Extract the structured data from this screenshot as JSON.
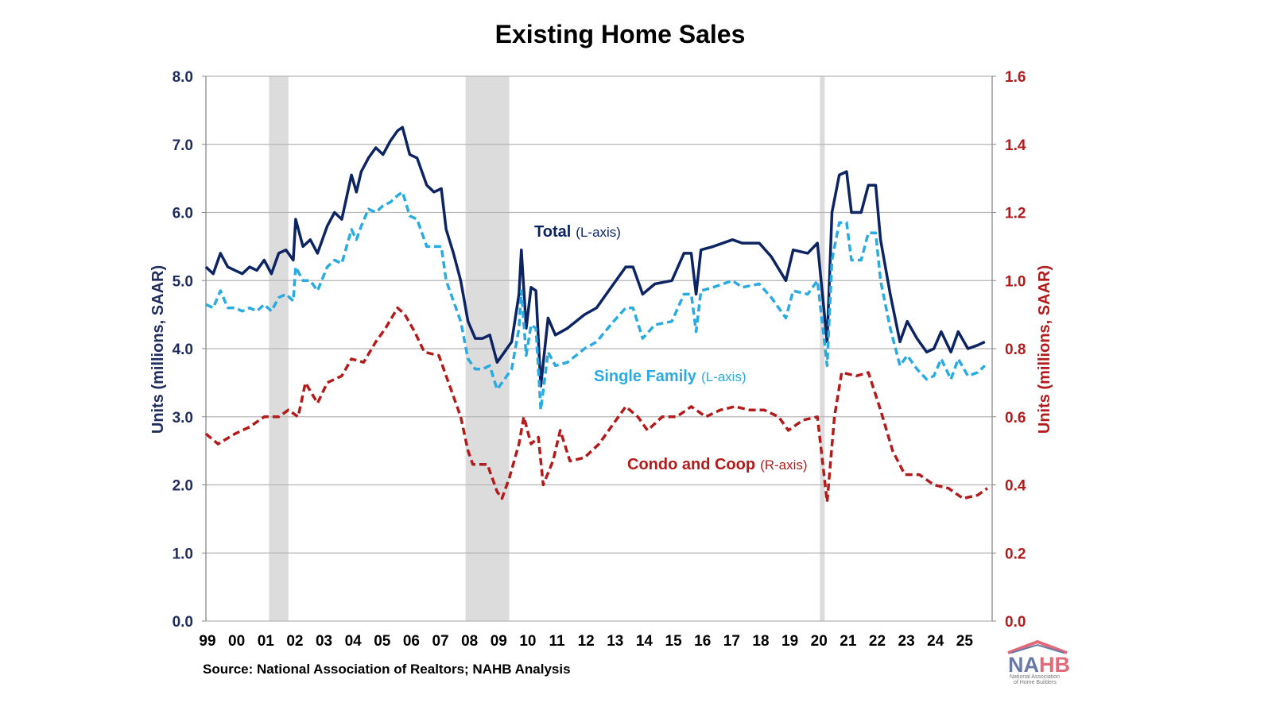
{
  "chart_data": {
    "type": "line",
    "title": "Existing Home Sales",
    "ylabel_left": "Units (millions, SAAR)",
    "ylabel_right": "Units (millions, SAAR)",
    "ylim_left": [
      0,
      8
    ],
    "ylim_right": [
      0,
      1.6
    ],
    "yticks_left": [
      "0.0",
      "1.0",
      "2.0",
      "3.0",
      "4.0",
      "5.0",
      "6.0",
      "7.0",
      "8.0"
    ],
    "yticks_right": [
      "0.0",
      "0.2",
      "0.4",
      "0.6",
      "0.8",
      "1.0",
      "1.2",
      "1.4",
      "1.6"
    ],
    "xticks": [
      "99",
      "00",
      "01",
      "02",
      "03",
      "04",
      "05",
      "06",
      "07",
      "08",
      "09",
      "10",
      "11",
      "12",
      "13",
      "14",
      "15",
      "16",
      "17",
      "18",
      "19",
      "20",
      "21",
      "22",
      "23",
      "24",
      "25"
    ],
    "grid": true,
    "source": "Source: National Association of Realtors; NAHB Analysis",
    "logo": "NAHB National Association of Home Builders",
    "recessions": [
      [
        "2001-03",
        "2001-11"
      ],
      [
        "2007-12",
        "2009-06"
      ],
      [
        "2020-02",
        "2020-04"
      ]
    ],
    "colors": {
      "total": "#0d2463",
      "single_family": "#29abe2",
      "condo": "#b31b1b",
      "recession": "#dcdcdc"
    },
    "series": [
      {
        "name": "Total",
        "label_note": "(L-axis)",
        "axis": "left",
        "style": "solid",
        "points": [
          [
            "1999-01",
            5.2
          ],
          [
            "1999-04",
            5.1
          ],
          [
            "1999-07",
            5.4
          ],
          [
            "1999-10",
            5.2
          ],
          [
            "2000-01",
            5.15
          ],
          [
            "2000-04",
            5.1
          ],
          [
            "2000-07",
            5.2
          ],
          [
            "2000-10",
            5.15
          ],
          [
            "2001-01",
            5.3
          ],
          [
            "2001-04",
            5.1
          ],
          [
            "2001-07",
            5.4
          ],
          [
            "2001-10",
            5.45
          ],
          [
            "2002-01",
            5.3
          ],
          [
            "2002-02",
            5.9
          ],
          [
            "2002-05",
            5.5
          ],
          [
            "2002-08",
            5.6
          ],
          [
            "2002-11",
            5.4
          ],
          [
            "2003-03",
            5.8
          ],
          [
            "2003-06",
            6.0
          ],
          [
            "2003-09",
            5.9
          ],
          [
            "2004-01",
            6.55
          ],
          [
            "2004-03",
            6.3
          ],
          [
            "2004-05",
            6.6
          ],
          [
            "2004-08",
            6.8
          ],
          [
            "2004-11",
            6.95
          ],
          [
            "2005-02",
            6.85
          ],
          [
            "2005-05",
            7.05
          ],
          [
            "2005-08",
            7.2
          ],
          [
            "2005-10",
            7.25
          ],
          [
            "2006-01",
            6.85
          ],
          [
            "2006-04",
            6.8
          ],
          [
            "2006-08",
            6.4
          ],
          [
            "2006-11",
            6.3
          ],
          [
            "2007-02",
            6.35
          ],
          [
            "2007-04",
            5.75
          ],
          [
            "2007-07",
            5.4
          ],
          [
            "2007-10",
            5.0
          ],
          [
            "2008-01",
            4.4
          ],
          [
            "2008-04",
            4.15
          ],
          [
            "2008-07",
            4.15
          ],
          [
            "2008-10",
            4.2
          ],
          [
            "2009-01",
            3.8
          ],
          [
            "2009-04",
            3.95
          ],
          [
            "2009-07",
            4.1
          ],
          [
            "2009-10",
            4.8
          ],
          [
            "2009-11",
            5.45
          ],
          [
            "2010-01",
            4.3
          ],
          [
            "2010-03",
            4.9
          ],
          [
            "2010-05",
            4.85
          ],
          [
            "2010-07",
            3.45
          ],
          [
            "2010-10",
            4.45
          ],
          [
            "2011-01",
            4.2
          ],
          [
            "2011-06",
            4.3
          ],
          [
            "2012-01",
            4.5
          ],
          [
            "2012-06",
            4.6
          ],
          [
            "2013-01",
            4.95
          ],
          [
            "2013-06",
            5.2
          ],
          [
            "2013-09",
            5.2
          ],
          [
            "2014-01",
            4.8
          ],
          [
            "2014-06",
            4.95
          ],
          [
            "2015-01",
            5.0
          ],
          [
            "2015-06",
            5.4
          ],
          [
            "2015-09",
            5.4
          ],
          [
            "2015-11",
            4.8
          ],
          [
            "2016-01",
            5.45
          ],
          [
            "2016-06",
            5.5
          ],
          [
            "2017-02",
            5.6
          ],
          [
            "2017-06",
            5.55
          ],
          [
            "2018-01",
            5.55
          ],
          [
            "2018-06",
            5.35
          ],
          [
            "2018-12",
            5.0
          ],
          [
            "2019-03",
            5.45
          ],
          [
            "2019-09",
            5.4
          ],
          [
            "2020-01",
            5.55
          ],
          [
            "2020-05",
            4.1
          ],
          [
            "2020-07",
            6.0
          ],
          [
            "2020-10",
            6.55
          ],
          [
            "2021-01",
            6.6
          ],
          [
            "2021-03",
            6.0
          ],
          [
            "2021-07",
            6.0
          ],
          [
            "2021-10",
            6.4
          ],
          [
            "2022-01",
            6.4
          ],
          [
            "2022-03",
            5.6
          ],
          [
            "2022-07",
            4.8
          ],
          [
            "2022-11",
            4.1
          ],
          [
            "2023-02",
            4.4
          ],
          [
            "2023-06",
            4.15
          ],
          [
            "2023-10",
            3.95
          ],
          [
            "2024-01",
            4.0
          ],
          [
            "2024-04",
            4.25
          ],
          [
            "2024-08",
            3.95
          ],
          [
            "2024-11",
            4.25
          ],
          [
            "2025-03",
            4.0
          ],
          [
            "2025-07",
            4.05
          ],
          [
            "2025-10",
            4.1
          ]
        ]
      },
      {
        "name": "Single Family",
        "label_note": "(L-axis)",
        "axis": "left",
        "style": "dashed",
        "points": [
          [
            "1999-01",
            4.65
          ],
          [
            "1999-04",
            4.6
          ],
          [
            "1999-07",
            4.85
          ],
          [
            "1999-10",
            4.6
          ],
          [
            "2000-01",
            4.6
          ],
          [
            "2000-04",
            4.55
          ],
          [
            "2000-07",
            4.6
          ],
          [
            "2000-10",
            4.55
          ],
          [
            "2001-01",
            4.65
          ],
          [
            "2001-04",
            4.55
          ],
          [
            "2001-07",
            4.75
          ],
          [
            "2001-10",
            4.8
          ],
          [
            "2002-01",
            4.7
          ],
          [
            "2002-02",
            5.2
          ],
          [
            "2002-05",
            5.0
          ],
          [
            "2002-08",
            5.0
          ],
          [
            "2002-11",
            4.85
          ],
          [
            "2003-03",
            5.2
          ],
          [
            "2003-06",
            5.3
          ],
          [
            "2003-09",
            5.25
          ],
          [
            "2004-01",
            5.75
          ],
          [
            "2004-03",
            5.6
          ],
          [
            "2004-05",
            5.8
          ],
          [
            "2004-08",
            6.05
          ],
          [
            "2004-11",
            6.0
          ],
          [
            "2005-02",
            6.1
          ],
          [
            "2005-05",
            6.15
          ],
          [
            "2005-08",
            6.25
          ],
          [
            "2005-10",
            6.3
          ],
          [
            "2006-01",
            5.95
          ],
          [
            "2006-04",
            5.9
          ],
          [
            "2006-08",
            5.5
          ],
          [
            "2006-11",
            5.5
          ],
          [
            "2007-02",
            5.5
          ],
          [
            "2007-04",
            5.0
          ],
          [
            "2007-07",
            4.7
          ],
          [
            "2007-10",
            4.4
          ],
          [
            "2008-01",
            3.85
          ],
          [
            "2008-04",
            3.7
          ],
          [
            "2008-07",
            3.7
          ],
          [
            "2008-10",
            3.75
          ],
          [
            "2009-01",
            3.4
          ],
          [
            "2009-04",
            3.55
          ],
          [
            "2009-07",
            3.7
          ],
          [
            "2009-10",
            4.3
          ],
          [
            "2009-11",
            4.85
          ],
          [
            "2010-01",
            3.9
          ],
          [
            "2010-03",
            4.35
          ],
          [
            "2010-05",
            4.3
          ],
          [
            "2010-07",
            3.1
          ],
          [
            "2010-10",
            3.95
          ],
          [
            "2011-01",
            3.75
          ],
          [
            "2011-06",
            3.8
          ],
          [
            "2012-01",
            4.0
          ],
          [
            "2012-06",
            4.1
          ],
          [
            "2013-01",
            4.4
          ],
          [
            "2013-06",
            4.6
          ],
          [
            "2013-09",
            4.6
          ],
          [
            "2014-01",
            4.15
          ],
          [
            "2014-06",
            4.35
          ],
          [
            "2015-01",
            4.4
          ],
          [
            "2015-06",
            4.8
          ],
          [
            "2015-09",
            4.8
          ],
          [
            "2015-11",
            4.25
          ],
          [
            "2016-01",
            4.85
          ],
          [
            "2016-06",
            4.9
          ],
          [
            "2017-02",
            5.0
          ],
          [
            "2017-06",
            4.9
          ],
          [
            "2018-01",
            4.95
          ],
          [
            "2018-06",
            4.75
          ],
          [
            "2018-12",
            4.45
          ],
          [
            "2019-03",
            4.85
          ],
          [
            "2019-09",
            4.8
          ],
          [
            "2020-01",
            5.0
          ],
          [
            "2020-05",
            3.75
          ],
          [
            "2020-07",
            5.3
          ],
          [
            "2020-10",
            5.85
          ],
          [
            "2021-01",
            5.85
          ],
          [
            "2021-03",
            5.3
          ],
          [
            "2021-07",
            5.3
          ],
          [
            "2021-10",
            5.7
          ],
          [
            "2022-01",
            5.7
          ],
          [
            "2022-03",
            5.0
          ],
          [
            "2022-07",
            4.3
          ],
          [
            "2022-11",
            3.75
          ],
          [
            "2023-02",
            3.9
          ],
          [
            "2023-06",
            3.7
          ],
          [
            "2023-10",
            3.55
          ],
          [
            "2024-01",
            3.6
          ],
          [
            "2024-04",
            3.85
          ],
          [
            "2024-08",
            3.55
          ],
          [
            "2024-11",
            3.85
          ],
          [
            "2025-03",
            3.6
          ],
          [
            "2025-07",
            3.65
          ],
          [
            "2025-10",
            3.75
          ]
        ]
      },
      {
        "name": "Condo and Coop",
        "label_note": "(R-axis)",
        "axis": "right",
        "style": "dashed",
        "points": [
          [
            "1999-01",
            0.55
          ],
          [
            "1999-06",
            0.52
          ],
          [
            "2000-01",
            0.55
          ],
          [
            "2000-07",
            0.57
          ],
          [
            "2001-01",
            0.6
          ],
          [
            "2001-07",
            0.6
          ],
          [
            "2001-11",
            0.62
          ],
          [
            "2002-03",
            0.6
          ],
          [
            "2002-06",
            0.7
          ],
          [
            "2002-11",
            0.64
          ],
          [
            "2003-03",
            0.7
          ],
          [
            "2003-09",
            0.72
          ],
          [
            "2004-01",
            0.77
          ],
          [
            "2004-06",
            0.76
          ],
          [
            "2004-11",
            0.82
          ],
          [
            "2005-03",
            0.86
          ],
          [
            "2005-08",
            0.92
          ],
          [
            "2005-11",
            0.9
          ],
          [
            "2006-03",
            0.85
          ],
          [
            "2006-07",
            0.79
          ],
          [
            "2007-01",
            0.78
          ],
          [
            "2007-06",
            0.68
          ],
          [
            "2007-10",
            0.6
          ],
          [
            "2008-01",
            0.5
          ],
          [
            "2008-03",
            0.46
          ],
          [
            "2008-09",
            0.46
          ],
          [
            "2009-01",
            0.38
          ],
          [
            "2009-03",
            0.36
          ],
          [
            "2009-06",
            0.42
          ],
          [
            "2009-10",
            0.52
          ],
          [
            "2009-12",
            0.6
          ],
          [
            "2010-03",
            0.52
          ],
          [
            "2010-06",
            0.54
          ],
          [
            "2010-08",
            0.4
          ],
          [
            "2010-12",
            0.47
          ],
          [
            "2011-03",
            0.56
          ],
          [
            "2011-07",
            0.47
          ],
          [
            "2012-01",
            0.48
          ],
          [
            "2012-07",
            0.52
          ],
          [
            "2013-01",
            0.58
          ],
          [
            "2013-06",
            0.63
          ],
          [
            "2013-11",
            0.6
          ],
          [
            "2014-03",
            0.56
          ],
          [
            "2014-09",
            0.6
          ],
          [
            "2015-03",
            0.6
          ],
          [
            "2015-09",
            0.63
          ],
          [
            "2016-03",
            0.6
          ],
          [
            "2016-09",
            0.62
          ],
          [
            "2017-03",
            0.63
          ],
          [
            "2017-09",
            0.62
          ],
          [
            "2018-03",
            0.62
          ],
          [
            "2018-09",
            0.6
          ],
          [
            "2019-01",
            0.56
          ],
          [
            "2019-07",
            0.59
          ],
          [
            "2020-01",
            0.6
          ],
          [
            "2020-05",
            0.35
          ],
          [
            "2020-08",
            0.6
          ],
          [
            "2020-11",
            0.73
          ],
          [
            "2021-05",
            0.72
          ],
          [
            "2021-10",
            0.73
          ],
          [
            "2022-03",
            0.62
          ],
          [
            "2022-08",
            0.5
          ],
          [
            "2023-01",
            0.43
          ],
          [
            "2023-07",
            0.43
          ],
          [
            "2024-01",
            0.4
          ],
          [
            "2024-07",
            0.39
          ],
          [
            "2025-01",
            0.36
          ],
          [
            "2025-07",
            0.37
          ],
          [
            "2025-11",
            0.39
          ]
        ]
      }
    ]
  }
}
